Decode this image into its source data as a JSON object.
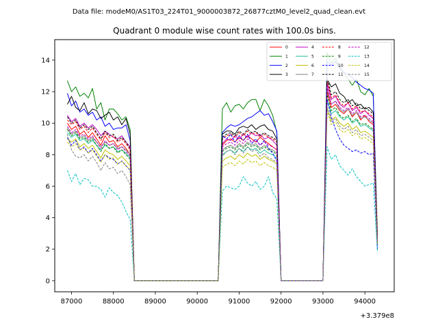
{
  "chart_data": {
    "type": "line",
    "suptitle": "Data file: modeM0/AS1T03_224T01_9000003872_26877cztM0_level2_quad_clean.evt",
    "title": "Quadrant 0 module wise count rates with 100.0s bins.",
    "xlabel": "",
    "ylabel": "",
    "x_offset_label": "+3.379e8",
    "xlim": [
      86600,
      94700
    ],
    "ylim": [
      -0.7,
      15.3
    ],
    "xticks": [
      87000,
      88000,
      89000,
      90000,
      91000,
      92000,
      93000,
      94000
    ],
    "xtick_labels": [
      "87000",
      "88000",
      "89000",
      "90000",
      "91000",
      "92000",
      "93000",
      "94000"
    ],
    "yticks": [
      0,
      2,
      4,
      6,
      8,
      10,
      12,
      14
    ],
    "ytick_labels": [
      "0",
      "2",
      "4",
      "6",
      "8",
      "10",
      "12",
      "14"
    ],
    "legend_position": "upper-right",
    "segments": {
      "seg1": {
        "start": 86900,
        "end": 88400
      },
      "gap1": {
        "start": 88500,
        "end": 90500
      },
      "seg2": {
        "start": 90600,
        "end": 91900
      },
      "gap2": {
        "start": 92000,
        "end": 93000
      },
      "seg3": {
        "start": 93100,
        "end": 94200
      },
      "end_x": 94300
    },
    "series": [
      {
        "name": "0",
        "color": "#ff0000",
        "style": "solid",
        "seg1": [
          10.0,
          9.6,
          9.8,
          9.3,
          9.5,
          9.1,
          9.4,
          9.0,
          8.6,
          9.2,
          8.8,
          8.9,
          8.5,
          8.7,
          8.4,
          8.0
        ],
        "seg2": [
          8.6,
          8.9,
          9.0,
          8.8,
          9.1,
          8.9,
          9.2,
          9.0,
          8.8,
          9.1,
          8.9,
          8.7,
          8.5,
          8.3
        ],
        "seg3": [
          12.0,
          11.0,
          11.2,
          10.8,
          10.6,
          10.9,
          10.4,
          10.7,
          10.2,
          10.5,
          10.1,
          9.9
        ],
        "end": 2.6
      },
      {
        "name": "1",
        "color": "#008000",
        "style": "solid",
        "seg1": [
          12.7,
          12.0,
          12.3,
          11.7,
          11.9,
          11.6,
          12.2,
          10.9,
          11.3,
          10.2,
          10.9,
          10.9,
          10.6,
          10.2,
          10.4,
          9.6
        ],
        "seg2": [
          10.9,
          11.3,
          10.7,
          11.1,
          11.2,
          10.9,
          11.3,
          11.5,
          11.5,
          10.8,
          11.5,
          11.1,
          10.5,
          9.4
        ],
        "seg3": [
          14.5,
          13.8,
          14.1,
          13.6,
          13.2,
          12.8,
          12.4,
          12.8,
          12.0,
          11.8,
          12.2,
          11.7
        ],
        "end": 3.0
      },
      {
        "name": "2",
        "color": "#0000ff",
        "style": "solid",
        "seg1": [
          11.9,
          11.1,
          11.4,
          10.7,
          10.9,
          10.5,
          10.7,
          10.2,
          10.4,
          9.8,
          10.0,
          9.6,
          9.7,
          9.7,
          9.9,
          8.9
        ],
        "seg2": [
          9.4,
          9.7,
          9.9,
          9.8,
          9.9,
          10.1,
          10.3,
          10.4,
          10.6,
          10.8,
          10.5,
          10.6,
          10.1,
          9.5
        ],
        "seg3": [
          13.9,
          13.7,
          13.9,
          13.5,
          13.2,
          13.1,
          12.9,
          12.6,
          12.4,
          12.2,
          12.1,
          11.9
        ],
        "end": 2.2
      },
      {
        "name": "3",
        "color": "#000000",
        "style": "solid",
        "seg1": [
          11.2,
          11.7,
          11.0,
          10.8,
          11.3,
          10.6,
          10.9,
          10.8,
          10.3,
          10.5,
          10.7,
          10.2,
          10.4,
          9.9,
          10.3,
          9.3
        ],
        "seg2": [
          9.3,
          9.5,
          9.5,
          9.3,
          9.7,
          9.8,
          9.7,
          9.9,
          9.6,
          9.8,
          9.9,
          9.6,
          9.5,
          9.0
        ],
        "seg3": [
          12.8,
          12.3,
          12.5,
          11.9,
          11.7,
          11.3,
          11.5,
          11.1,
          11.2,
          10.9,
          11.0,
          10.7
        ],
        "end": 2.6
      },
      {
        "name": "4",
        "color": "#c000c0",
        "style": "solid",
        "seg1": [
          10.5,
          10.1,
          10.3,
          9.8,
          10.0,
          9.7,
          9.9,
          9.6,
          9.2,
          9.5,
          9.3,
          9.1,
          9.0,
          9.2,
          8.8,
          8.5
        ],
        "seg2": [
          8.7,
          9.0,
          8.9,
          9.2,
          9.0,
          9.3,
          9.1,
          9.4,
          9.2,
          9.3,
          9.0,
          9.1,
          8.9,
          8.6
        ],
        "seg3": [
          12.5,
          11.5,
          11.7,
          11.2,
          11.0,
          11.3,
          10.8,
          11.0,
          10.6,
          10.8,
          10.5,
          10.3
        ],
        "end": 2.5
      },
      {
        "name": "5",
        "color": "#20c0a0",
        "style": "solid",
        "seg1": [
          9.4,
          9.1,
          9.3,
          8.9,
          9.0,
          8.7,
          8.9,
          8.6,
          8.3,
          8.6,
          8.4,
          8.5,
          8.2,
          8.3,
          8.1,
          7.8
        ],
        "seg2": [
          8.0,
          8.2,
          8.3,
          8.1,
          8.4,
          8.2,
          8.5,
          8.3,
          8.4,
          8.1,
          8.3,
          8.1,
          8.0,
          7.8
        ],
        "seg3": [
          11.5,
          10.6,
          10.8,
          10.4,
          10.2,
          10.4,
          10.0,
          10.2,
          9.8,
          9.9,
          9.7,
          9.5
        ],
        "end": 2.4
      },
      {
        "name": "6",
        "color": "#c0c000",
        "style": "solid",
        "seg1": [
          9.0,
          8.8,
          9.0,
          8.5,
          8.7,
          8.4,
          8.6,
          8.2,
          7.8,
          8.3,
          8.1,
          8.0,
          7.7,
          7.9,
          7.6,
          7.3
        ],
        "seg2": [
          7.6,
          7.8,
          7.9,
          7.7,
          8.0,
          7.8,
          8.1,
          7.9,
          8.0,
          7.7,
          7.9,
          7.7,
          7.6,
          7.4
        ],
        "seg3": [
          11.0,
          10.2,
          10.4,
          10.0,
          9.8,
          10.0,
          9.6,
          9.8,
          9.4,
          9.5,
          9.3,
          9.1
        ],
        "end": 2.3
      },
      {
        "name": "7",
        "color": "#808080",
        "style": "solid",
        "seg1": [
          9.7,
          9.3,
          9.5,
          9.1,
          9.2,
          8.9,
          9.1,
          8.8,
          8.5,
          8.8,
          8.6,
          8.7,
          8.4,
          8.5,
          8.3,
          8.0
        ],
        "seg2": [
          8.3,
          8.5,
          8.6,
          8.4,
          8.7,
          8.5,
          8.8,
          8.6,
          8.7,
          8.4,
          8.6,
          8.4,
          8.3,
          8.1
        ],
        "seg3": [
          12.2,
          11.2,
          11.4,
          10.9,
          10.7,
          10.9,
          10.5,
          10.7,
          10.3,
          10.4,
          10.2,
          10.0
        ],
        "end": 2.5
      },
      {
        "name": "8",
        "color": "#ff0000",
        "style": "dashed",
        "seg1": [
          10.2,
          9.9,
          10.1,
          9.6,
          9.8,
          9.4,
          9.7,
          9.3,
          8.9,
          9.4,
          9.1,
          9.2,
          8.8,
          9.0,
          8.7,
          8.3
        ],
        "seg2": [
          9.0,
          9.2,
          9.3,
          9.1,
          9.4,
          9.2,
          9.5,
          9.3,
          9.4,
          9.1,
          9.3,
          9.1,
          9.0,
          8.8
        ],
        "seg3": [
          12.7,
          11.6,
          11.8,
          11.3,
          11.1,
          11.3,
          10.9,
          11.1,
          10.7,
          10.8,
          10.6,
          10.4
        ],
        "end": 2.7
      },
      {
        "name": "9",
        "color": "#008000",
        "style": "dashed",
        "seg1": [
          9.6,
          9.2,
          9.4,
          9.0,
          9.1,
          8.8,
          9.0,
          8.6,
          8.2,
          8.7,
          8.4,
          8.5,
          8.1,
          8.3,
          8.0,
          7.7
        ],
        "seg2": [
          8.2,
          8.4,
          8.5,
          8.3,
          8.6,
          8.4,
          8.7,
          8.5,
          8.6,
          8.3,
          8.5,
          8.3,
          8.2,
          8.0
        ],
        "seg3": [
          11.8,
          10.8,
          11.0,
          10.5,
          10.3,
          10.5,
          10.1,
          10.3,
          9.9,
          10.0,
          9.8,
          9.6
        ],
        "end": 2.4
      },
      {
        "name": "10",
        "color": "#0000ff",
        "style": "dashed",
        "seg1": [
          9.1,
          8.6,
          8.9,
          8.3,
          8.5,
          8.1,
          8.4,
          8.0,
          7.6,
          8.0,
          7.8,
          7.7,
          7.4,
          7.6,
          7.3,
          7.0
        ],
        "seg2": [
          9.2,
          9.0,
          9.3,
          8.8,
          9.2,
          8.9,
          9.3,
          8.7,
          9.0,
          8.6,
          8.9,
          8.4,
          8.1,
          7.6
        ],
        "seg3": [
          11.5,
          10.4,
          9.6,
          9.0,
          8.6,
          8.4,
          8.2,
          8.3,
          8.1,
          8.2,
          8.0,
          8.1
        ],
        "end": 2.0
      },
      {
        "name": "11",
        "color": "#000000",
        "style": "dashed",
        "seg1": [
          10.4,
          10.0,
          10.2,
          9.7,
          9.9,
          9.6,
          9.8,
          9.4,
          9.0,
          9.5,
          9.2,
          9.3,
          8.9,
          9.1,
          8.8,
          8.4
        ],
        "seg2": [
          9.1,
          9.3,
          9.4,
          9.2,
          9.5,
          9.3,
          9.6,
          9.4,
          9.5,
          9.2,
          9.4,
          9.2,
          9.1,
          8.9
        ],
        "seg3": [
          12.9,
          11.8,
          12.0,
          11.5,
          11.3,
          11.5,
          11.1,
          11.3,
          10.9,
          11.0,
          10.8,
          10.6
        ],
        "end": 2.7
      },
      {
        "name": "12",
        "color": "#c000c0",
        "style": "dashed",
        "seg1": [
          9.8,
          9.4,
          9.6,
          9.2,
          9.3,
          9.0,
          9.2,
          8.8,
          8.4,
          8.9,
          8.6,
          8.7,
          8.3,
          8.5,
          8.2,
          7.9
        ],
        "seg2": [
          8.5,
          8.7,
          8.8,
          8.6,
          8.9,
          8.7,
          9.0,
          8.8,
          8.9,
          8.6,
          8.8,
          8.6,
          8.5,
          8.3
        ],
        "seg3": [
          12.3,
          11.2,
          11.4,
          11.0,
          10.8,
          11.0,
          10.6,
          10.8,
          10.4,
          10.5,
          10.3,
          10.1
        ],
        "end": 2.5
      },
      {
        "name": "13",
        "color": "#00c0c0",
        "style": "dashed",
        "seg1": [
          7.0,
          6.3,
          6.8,
          6.1,
          6.5,
          6.4,
          6.0,
          6.0,
          5.8,
          5.3,
          5.9,
          5.6,
          5.4,
          5.0,
          4.4,
          3.9
        ],
        "seg2": [
          5.7,
          6.0,
          5.9,
          5.8,
          6.0,
          6.6,
          6.2,
          6.0,
          6.3,
          5.8,
          6.0,
          6.6,
          5.6,
          5.2
        ],
        "seg3": [
          8.5,
          7.7,
          8.0,
          7.3,
          7.0,
          6.7,
          7.1,
          6.6,
          6.3,
          6.0,
          6.1,
          6.2
        ],
        "end": 1.8
      },
      {
        "name": "14",
        "color": "#c0c000",
        "style": "dashed",
        "seg1": [
          8.8,
          8.5,
          8.7,
          8.3,
          8.4,
          8.1,
          8.3,
          7.9,
          7.5,
          8.0,
          7.7,
          7.8,
          7.4,
          7.6,
          7.3,
          7.0
        ],
        "seg2": [
          7.2,
          7.4,
          7.5,
          7.3,
          7.6,
          7.4,
          7.7,
          7.5,
          7.6,
          7.3,
          7.5,
          7.3,
          7.2,
          7.0
        ],
        "seg3": [
          10.8,
          9.9,
          10.1,
          9.6,
          9.4,
          9.6,
          9.2,
          9.4,
          9.0,
          9.1,
          8.9,
          8.7
        ],
        "end": 2.3
      },
      {
        "name": "15",
        "color": "#808080",
        "style": "dashed",
        "seg1": [
          9.3,
          8.3,
          7.9,
          7.8,
          8.0,
          7.6,
          7.9,
          7.5,
          7.0,
          7.5,
          7.1,
          7.2,
          6.8,
          7.0,
          6.6,
          6.1
        ],
        "seg2": [
          7.9,
          8.2,
          8.3,
          8.0,
          8.4,
          8.1,
          8.5,
          8.2,
          8.3,
          7.9,
          8.1,
          7.8,
          7.7,
          7.5
        ],
        "seg3": [
          11.0,
          10.1,
          10.3,
          9.8,
          9.6,
          9.8,
          9.4,
          9.6,
          9.2,
          9.3,
          9.1,
          8.9
        ],
        "end": 2.2
      }
    ]
  }
}
